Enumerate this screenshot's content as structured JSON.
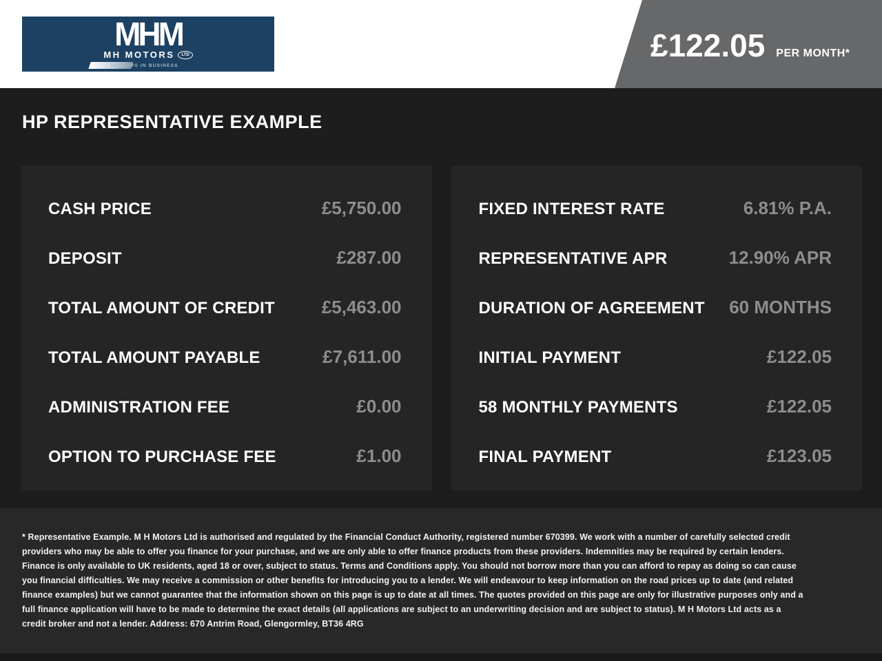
{
  "header": {
    "logo": {
      "initials": "MHM",
      "name": "MH MOTORS",
      "suffix": "LTD",
      "tagline": "36 YEARS IN BUSINESS"
    },
    "price_banner": {
      "amount": "£122.05",
      "period": "PER MONTH*"
    }
  },
  "page_title": "HP REPRESENTATIVE EXAMPLE",
  "finance": {
    "left_rows": [
      {
        "label": "CASH PRICE",
        "value": "£5,750.00"
      },
      {
        "label": "DEPOSIT",
        "value": "£287.00"
      },
      {
        "label": "TOTAL AMOUNT OF CREDIT",
        "value": "£5,463.00"
      },
      {
        "label": "TOTAL AMOUNT PAYABLE",
        "value": "£7,611.00"
      },
      {
        "label": "ADMINISTRATION FEE",
        "value": "£0.00"
      },
      {
        "label": "OPTION TO PURCHASE FEE",
        "value": "£1.00"
      }
    ],
    "right_rows": [
      {
        "label": "FIXED INTEREST RATE",
        "value": "6.81% P.A."
      },
      {
        "label": "REPRESENTATIVE APR",
        "value": "12.90% APR"
      },
      {
        "label": "DURATION OF AGREEMENT",
        "value": "60 MONTHS"
      },
      {
        "label": "INITIAL PAYMENT",
        "value": "£122.05"
      },
      {
        "label": "58 MONTHLY PAYMENTS",
        "value": "£122.05"
      },
      {
        "label": "FINAL PAYMENT",
        "value": "£123.05"
      }
    ]
  },
  "disclaimer": "* Representative Example. M H Motors Ltd is authorised and regulated by the Financial Conduct Authority, registered number 670399. We work with a number of carefully selected credit providers who may be able to offer you finance for your purchase, and we are only able to offer finance products from these providers. Indemnities may be required by certain lenders. Finance is only available to UK residents, aged 18 or over, subject to status. Terms and Conditions apply. You should not borrow more than you can afford to repay as doing so can cause you financial difficulties. We may receive a commission or other benefits for introducing you to a lender. We will endeavour to keep information on the road prices up to date (and related finance examples) but we cannot guarantee that the information shown on this page is up to date at all times. The quotes provided on this page are only for illustrative purposes only and a full finance application will have to be made to determine the exact details (all applications are subject to an underwriting decision and are subject to status). M H Motors Ltd acts as a credit broker and not a lender. Address: 670 Antrim Road, Glengormley, BT36 4RG",
  "colors": {
    "logo_navy": "#1c4163",
    "banner_gray": "#67686a",
    "page_bg": "#1d1d1d",
    "panel_bg": "#252525",
    "footer_bg": "#282828",
    "value_gray": "#8d8d8d"
  }
}
